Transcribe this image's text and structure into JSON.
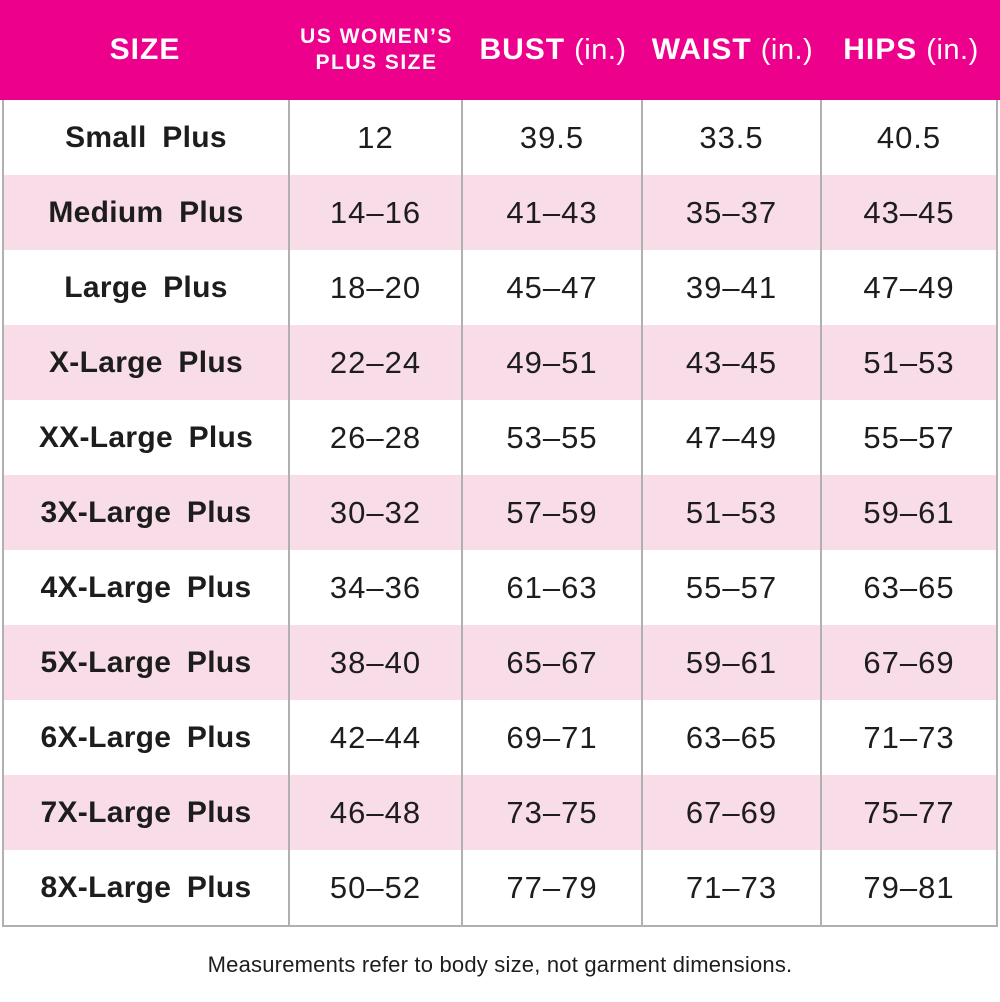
{
  "chart_data": {
    "type": "table",
    "columns": [
      {
        "label": "SIZE",
        "unit": ""
      },
      {
        "label": "US WOMEN’S",
        "label_line2": "PLUS SIZE",
        "unit": ""
      },
      {
        "label": "BUST",
        "unit": "(in.)"
      },
      {
        "label": "WAIST",
        "unit": "(in.)"
      },
      {
        "label": "HIPS",
        "unit": "(in.)"
      }
    ],
    "rows": [
      {
        "size": "Small Plus",
        "plus_size": "12",
        "bust": "39.5",
        "waist": "33.5",
        "hips": "40.5"
      },
      {
        "size": "Medium Plus",
        "plus_size": "14–16",
        "bust": "41–43",
        "waist": "35–37",
        "hips": "43–45"
      },
      {
        "size": "Large Plus",
        "plus_size": "18–20",
        "bust": "45–47",
        "waist": "39–41",
        "hips": "47–49"
      },
      {
        "size": "X-Large Plus",
        "plus_size": "22–24",
        "bust": "49–51",
        "waist": "43–45",
        "hips": "51–53"
      },
      {
        "size": "XX-Large Plus",
        "plus_size": "26–28",
        "bust": "53–55",
        "waist": "47–49",
        "hips": "55–57"
      },
      {
        "size": "3X-Large Plus",
        "plus_size": "30–32",
        "bust": "57–59",
        "waist": "51–53",
        "hips": "59–61"
      },
      {
        "size": "4X-Large Plus",
        "plus_size": "34–36",
        "bust": "61–63",
        "waist": "55–57",
        "hips": "63–65"
      },
      {
        "size": "5X-Large Plus",
        "plus_size": "38–40",
        "bust": "65–67",
        "waist": "59–61",
        "hips": "67–69"
      },
      {
        "size": "6X-Large Plus",
        "plus_size": "42–44",
        "bust": "69–71",
        "waist": "63–65",
        "hips": "71–73"
      },
      {
        "size": "7X-Large Plus",
        "plus_size": "46–48",
        "bust": "73–75",
        "waist": "67–69",
        "hips": "75–77"
      },
      {
        "size": "8X-Large Plus",
        "plus_size": "50–52",
        "bust": "77–79",
        "waist": "71–73",
        "hips": "79–81"
      }
    ]
  },
  "footer": {
    "note": "Measurements refer to body size, not garment dimensions."
  },
  "colors": {
    "header_bg": "#EC008C",
    "header_text": "#FFFFFF",
    "row_alt_bg": "#F8DCE8",
    "grid_line": "#B0B0B0",
    "text": "#1D1D1D"
  }
}
